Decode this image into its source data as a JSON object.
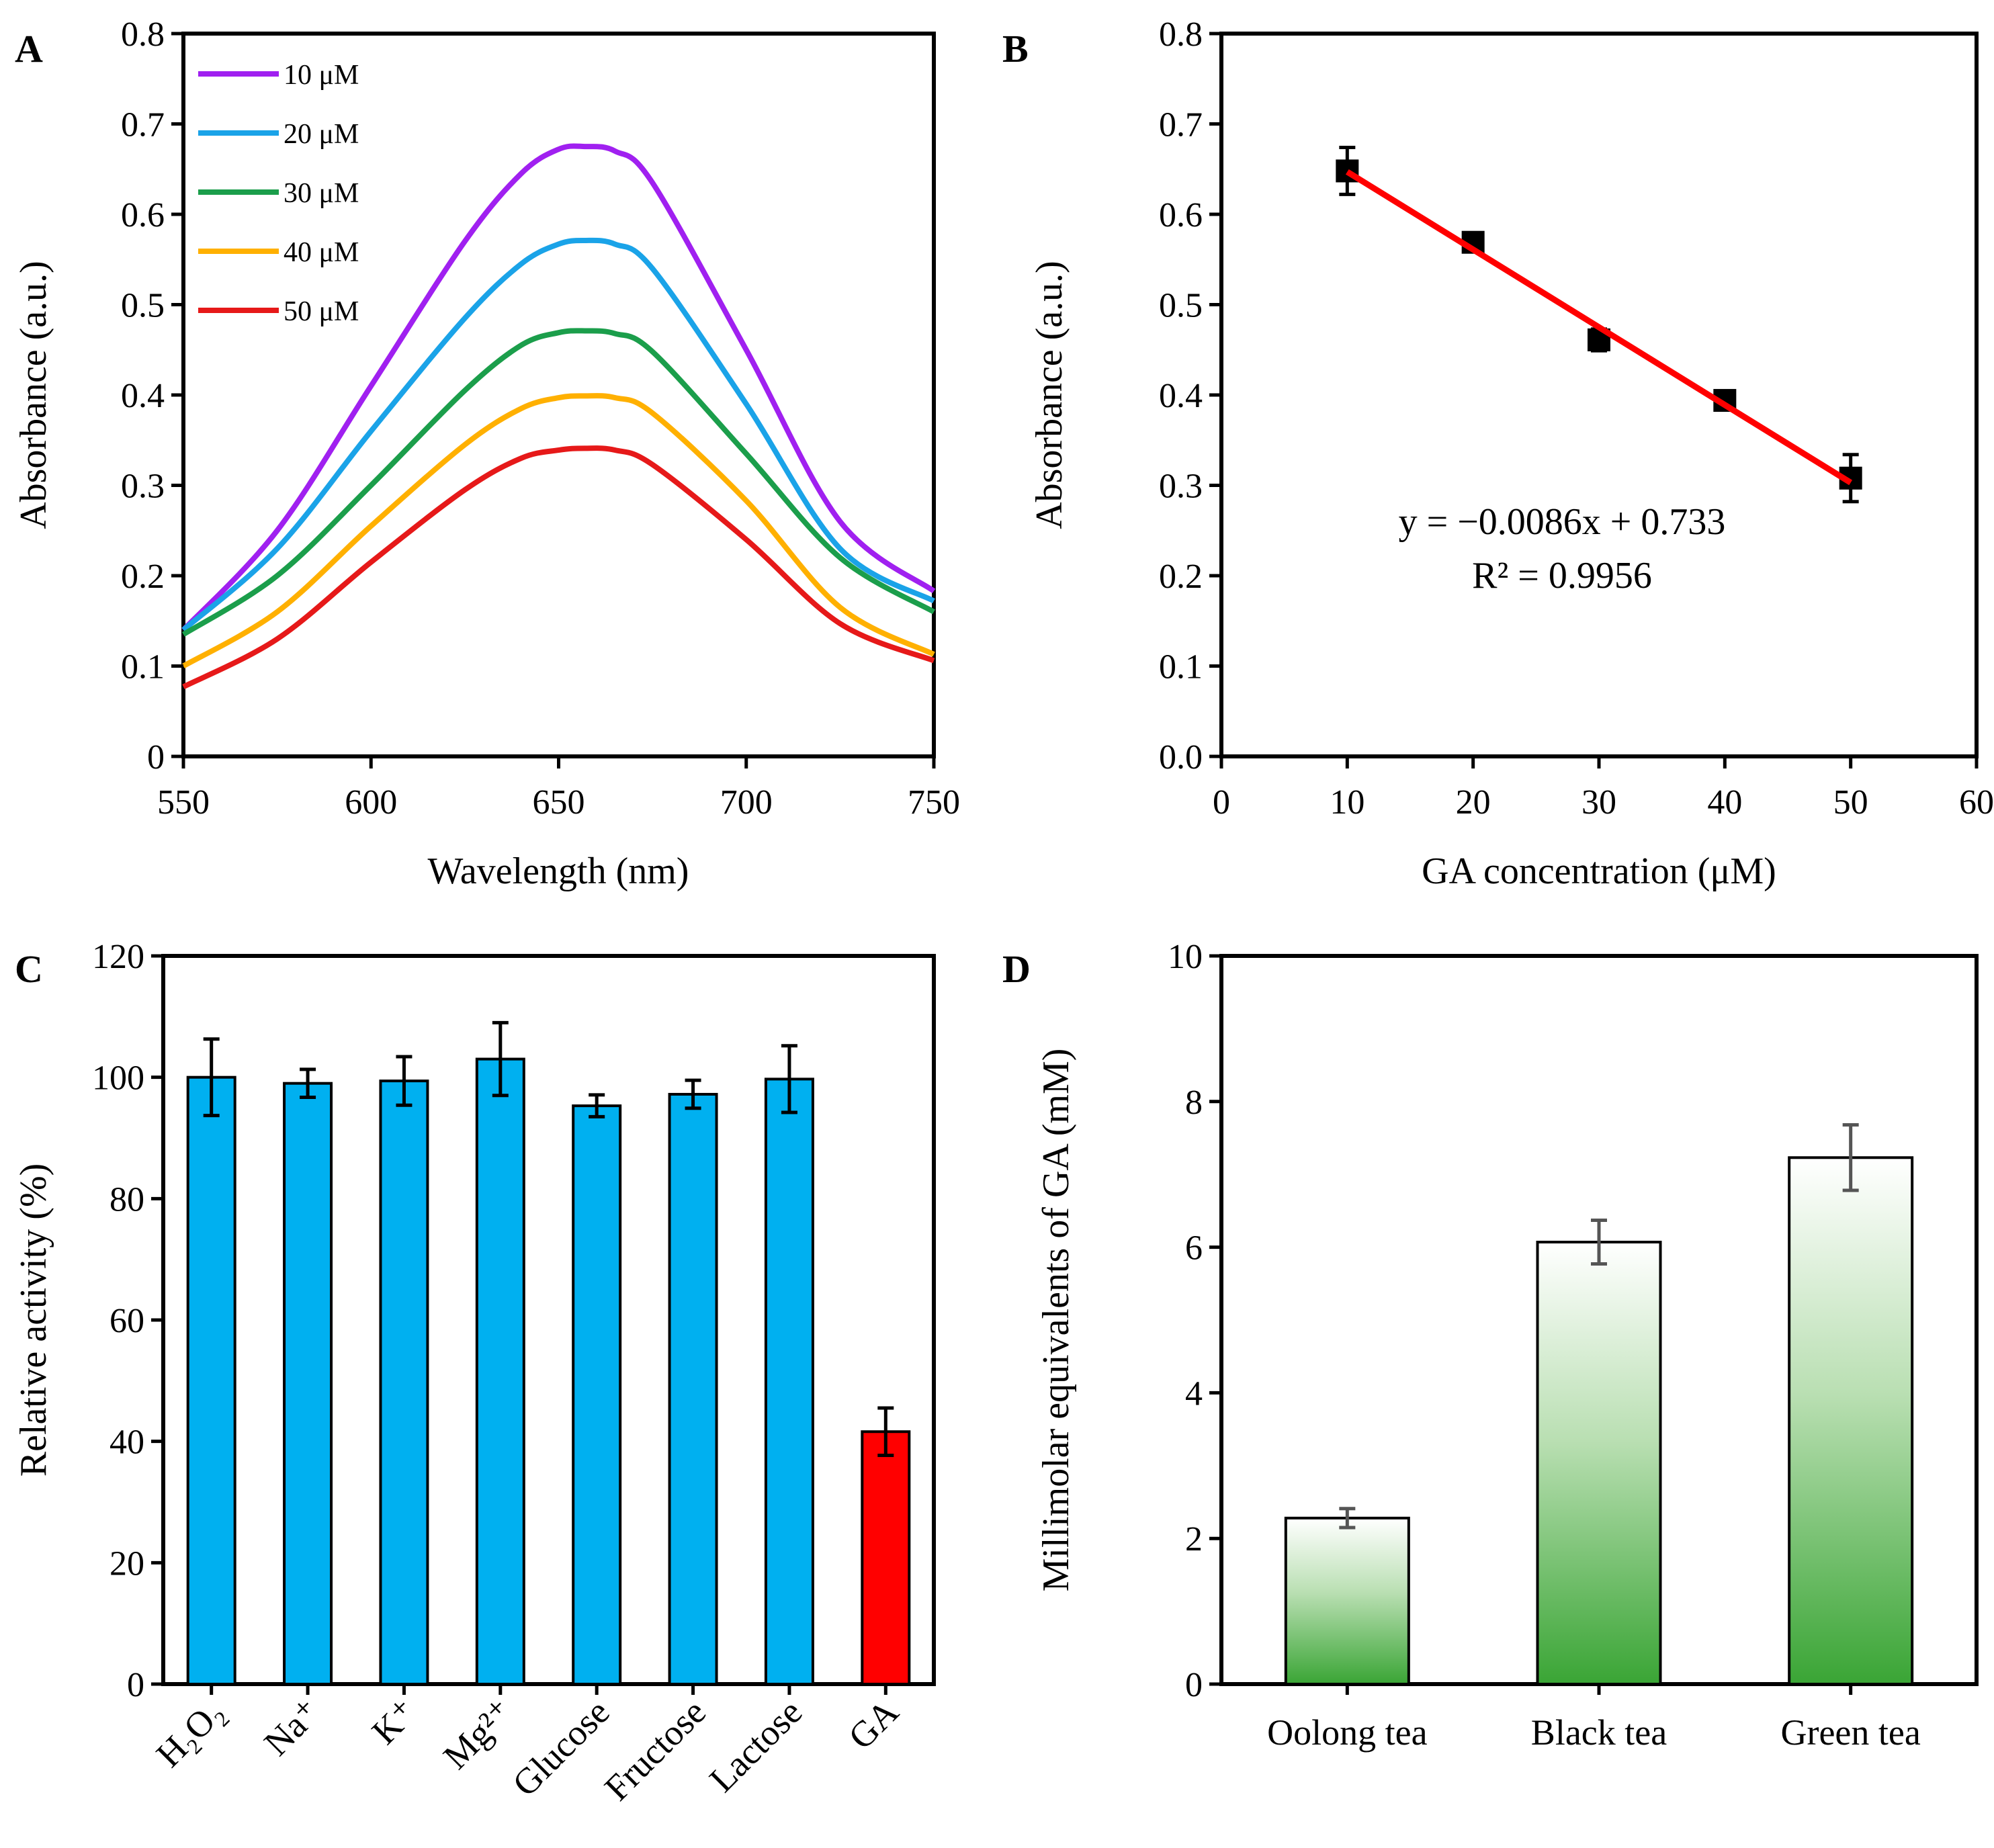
{
  "chart_data": [
    {
      "panel": "A",
      "type": "line",
      "title": "",
      "xlabel": "Wavelength (nm)",
      "ylabel": "Absorbance (a.u.)",
      "xlim": [
        550,
        750
      ],
      "ylim": [
        0,
        0.8
      ],
      "xticks": [
        "550",
        "600",
        "650",
        "700",
        "750"
      ],
      "yticks": [
        "0",
        "0.1",
        "0.2",
        "0.3",
        "0.4",
        "0.5",
        "0.6",
        "0.7",
        "0.8"
      ],
      "legend_position": "top-left",
      "x": [
        550,
        575,
        600,
        625,
        640,
        650,
        657,
        665,
        675,
        700,
        725,
        750
      ],
      "series": [
        {
          "name": "10 μM",
          "color": "#a020f0",
          "values": [
            0.14,
            0.25,
            0.41,
            0.57,
            0.645,
            0.672,
            0.675,
            0.67,
            0.635,
            0.45,
            0.26,
            0.183
          ]
        },
        {
          "name": "20 μM",
          "color": "#1aa3e8",
          "values": [
            0.14,
            0.23,
            0.36,
            0.485,
            0.545,
            0.567,
            0.571,
            0.567,
            0.54,
            0.39,
            0.23,
            0.172
          ]
        },
        {
          "name": "30 μM",
          "color": "#1b9e4b",
          "values": [
            0.135,
            0.2,
            0.3,
            0.405,
            0.455,
            0.469,
            0.471,
            0.468,
            0.448,
            0.335,
            0.22,
            0.16
          ]
        },
        {
          "name": "40 μM",
          "color": "#ffb000",
          "values": [
            0.1,
            0.16,
            0.255,
            0.345,
            0.385,
            0.397,
            0.399,
            0.397,
            0.38,
            0.283,
            0.165,
            0.113
          ]
        },
        {
          "name": "50 μM",
          "color": "#e61919",
          "values": [
            0.077,
            0.13,
            0.215,
            0.295,
            0.33,
            0.339,
            0.341,
            0.339,
            0.323,
            0.24,
            0.147,
            0.106
          ]
        }
      ]
    },
    {
      "panel": "B",
      "type": "scatter",
      "title": "",
      "xlabel": "GA concentration (μM)",
      "ylabel": "Absorbance (a.u.)",
      "xlim": [
        0,
        60
      ],
      "ylim": [
        0,
        0.8
      ],
      "xticks": [
        "0",
        "10",
        "20",
        "30",
        "40",
        "50",
        "60"
      ],
      "yticks": [
        "0.0",
        "0.1",
        "0.2",
        "0.3",
        "0.4",
        "0.5",
        "0.6",
        "0.7",
        "0.8"
      ],
      "x": [
        10,
        20,
        30,
        40,
        50
      ],
      "values": [
        0.648,
        0.569,
        0.461,
        0.394,
        0.308
      ],
      "errors": [
        0.026,
        0.008,
        0.012,
        0.01,
        0.026
      ],
      "fit": {
        "slope": -0.0086,
        "intercept": 0.733,
        "color": "#ff0000",
        "equation": "y = −0.0086x + 0.733",
        "r2": "R² = 0.9956"
      }
    },
    {
      "panel": "C",
      "type": "bar",
      "title": "",
      "xlabel": "",
      "ylabel": "Relative activity (%)",
      "ylim": [
        0,
        120
      ],
      "yticks": [
        "0",
        "20",
        "40",
        "60",
        "80",
        "100",
        "120"
      ],
      "categories": [
        "H₂O₂",
        "Na⁺",
        "K⁺",
        "Mg²⁺",
        "Glucose",
        "Fructose",
        "Lactose",
        "GA"
      ],
      "values": [
        100,
        99,
        99.4,
        103,
        95.3,
        97.2,
        99.7,
        41.6
      ],
      "errors": [
        6.3,
        2.3,
        4,
        6,
        1.8,
        2.3,
        5.5,
        3.9
      ],
      "colors": [
        "#00b0f0",
        "#00b0f0",
        "#00b0f0",
        "#00b0f0",
        "#00b0f0",
        "#00b0f0",
        "#00b0f0",
        "#ff0000"
      ]
    },
    {
      "panel": "D",
      "type": "bar",
      "title": "",
      "xlabel": "",
      "ylabel": "Millimolar equivalents of GA  (mM)",
      "ylim": [
        0,
        10
      ],
      "yticks": [
        "0",
        "2",
        "4",
        "6",
        "8",
        "10"
      ],
      "categories": [
        "Oolong tea",
        "Black tea",
        "Green tea"
      ],
      "values": [
        2.28,
        6.07,
        7.23
      ],
      "errors": [
        0.13,
        0.3,
        0.45
      ],
      "bar_color": "#3aa535",
      "error_color": "#555555"
    }
  ]
}
